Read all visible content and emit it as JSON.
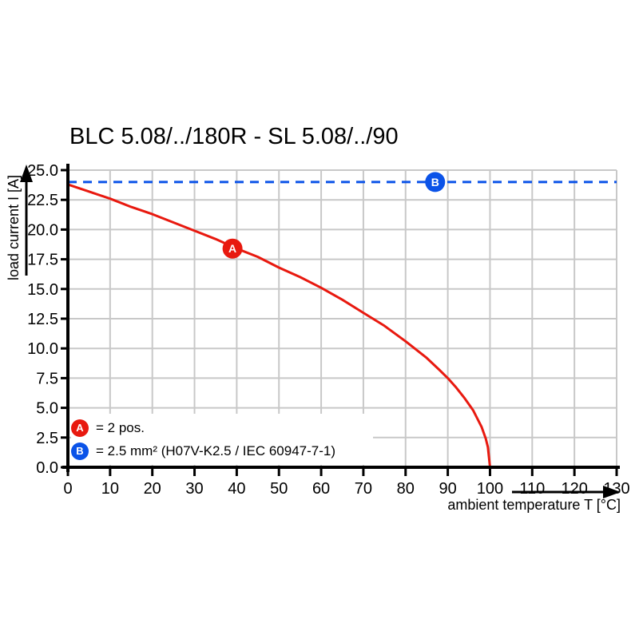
{
  "chart_data": {
    "type": "line",
    "title": "BLC 5.08/../180R - SL 5.08/../90",
    "xlabel": "ambient temperature T [°C]",
    "ylabel": "load current I [A]",
    "xlim": [
      0,
      130
    ],
    "ylim": [
      0,
      25
    ],
    "x_ticks": [
      0,
      10,
      20,
      30,
      40,
      50,
      60,
      70,
      80,
      90,
      100,
      110,
      120,
      130
    ],
    "y_ticks": [
      0,
      2.5,
      5,
      7.5,
      10,
      12.5,
      15,
      17.5,
      20,
      22.5,
      25
    ],
    "grid": true,
    "legend_position": "bottom-left-inside",
    "colors": {
      "grid": "#c8c8c8",
      "axis": "#000000",
      "series_a_red": "#e8190f",
      "series_b_blue": "#0b53e8"
    },
    "series": [
      {
        "name": "A",
        "legend_text": "= 2 pos.",
        "color": "#e8190f",
        "style": "solid",
        "marker": {
          "x": 39,
          "y": 18.4,
          "label": "A"
        },
        "points": [
          [
            0,
            23.8
          ],
          [
            5,
            23.2
          ],
          [
            10,
            22.6
          ],
          [
            15,
            21.9
          ],
          [
            20,
            21.3
          ],
          [
            25,
            20.6
          ],
          [
            30,
            19.9
          ],
          [
            35,
            19.2
          ],
          [
            40,
            18.4
          ],
          [
            45,
            17.7
          ],
          [
            50,
            16.8
          ],
          [
            55,
            16.0
          ],
          [
            60,
            15.1
          ],
          [
            65,
            14.1
          ],
          [
            70,
            13.0
          ],
          [
            75,
            11.9
          ],
          [
            80,
            10.6
          ],
          [
            85,
            9.2
          ],
          [
            88,
            8.2
          ],
          [
            90,
            7.5
          ],
          [
            92,
            6.7
          ],
          [
            94,
            5.8
          ],
          [
            96,
            4.8
          ],
          [
            97,
            4.1
          ],
          [
            98,
            3.4
          ],
          [
            99,
            2.4
          ],
          [
            99.5,
            1.7
          ],
          [
            100,
            0
          ]
        ]
      },
      {
        "name": "B",
        "legend_text": "= 2.5 mm² (H07V-K2.5 / IEC 60947-7-1)",
        "color": "#0b53e8",
        "style": "dashed",
        "y_value": 24,
        "marker": {
          "x": 87,
          "y": 24,
          "label": "B"
        },
        "points": [
          [
            0,
            24
          ],
          [
            130,
            24
          ]
        ]
      }
    ]
  }
}
